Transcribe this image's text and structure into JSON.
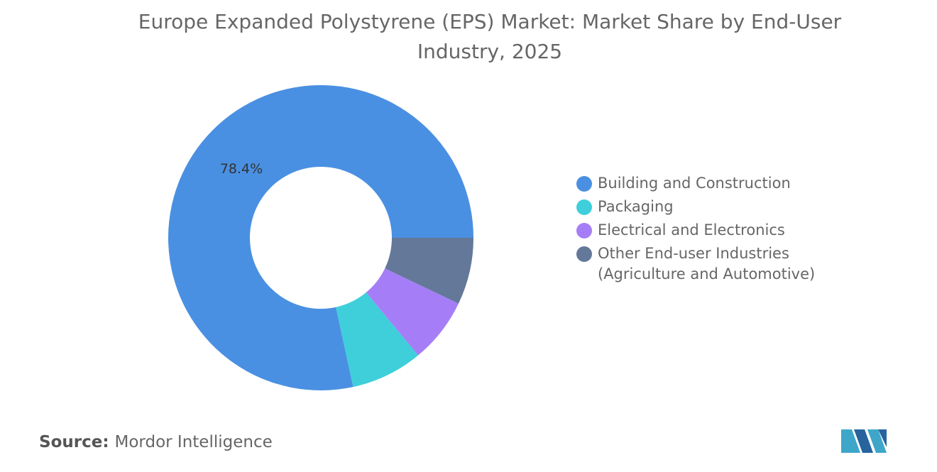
{
  "chart_data": {
    "type": "donut",
    "title": "Europe Expanded Polystyrene (EPS) Market: Market Share by End-User Industry, 2025",
    "categories": [
      "Building and Construction",
      "Packaging",
      "Electrical and Electronics",
      "Other End-user Industries (Agriculture and Automotive)"
    ],
    "values": [
      78.4,
      7.6,
      6.9,
      7.1
    ],
    "value_labels": [
      "78.4%",
      null,
      null,
      null
    ],
    "colors": [
      "#4a90e2",
      "#3ecfdb",
      "#a57ef7",
      "#64789a"
    ],
    "source_label": "Source:",
    "source": "Mordor Intelligence"
  }
}
